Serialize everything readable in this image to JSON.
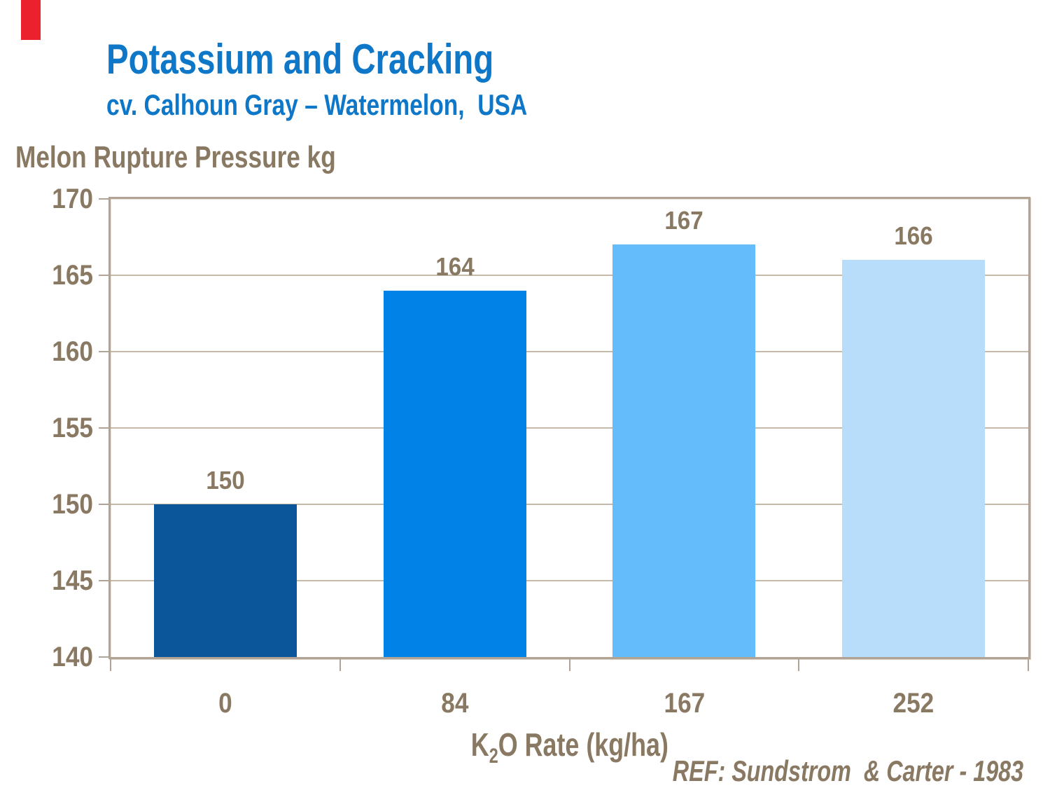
{
  "slide": {
    "title": "Potassium and Cracking",
    "subtitle": "cv. Calhoun Gray – Watermelon,  USA",
    "reference": "REF: Sundstrom  & Carter - 1983",
    "accent_color": "#EB212E",
    "title_color": "#0E77C8",
    "text_color": "#8A7962"
  },
  "chart_data": {
    "type": "bar",
    "title": "Melon Rupture Pressure kg",
    "ylabel": "Melon Rupture Pressure kg",
    "xlabel": "K2O Rate (kg/ha)",
    "xlabel_parts": {
      "base": "K",
      "subscript": "2",
      "rest": "O Rate (kg/ha)"
    },
    "categories": [
      "0",
      "84",
      "167",
      "252"
    ],
    "values": [
      150,
      164,
      167,
      166
    ],
    "bar_colors": [
      "#0B559B",
      "#0082E6",
      "#65BCFB",
      "#B7DDFB"
    ],
    "ylim": [
      140,
      170
    ],
    "ytick_step": 5,
    "grid": true,
    "legend": false,
    "axis_color": "#B1A496",
    "gridline_color": "#C5B9AA"
  }
}
